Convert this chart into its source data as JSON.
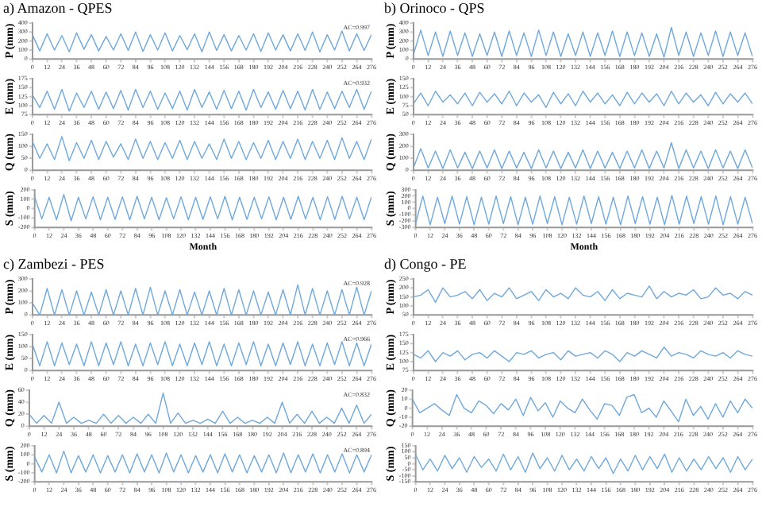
{
  "chart_data": [
    {
      "type": "line",
      "title": "a) Amazon - QPES",
      "ylabel": "P (mm)",
      "color": "#6fa8dc",
      "marker": "none",
      "x": [
        0,
        6,
        12,
        18,
        24,
        30,
        36,
        42,
        48,
        54,
        60,
        66,
        72,
        78,
        84,
        90,
        96,
        102,
        108,
        114,
        120,
        126,
        132,
        138,
        144,
        150,
        156,
        162,
        168,
        174,
        180,
        186,
        192,
        198,
        204,
        210,
        216,
        222,
        228,
        234,
        240,
        246,
        252,
        258,
        264,
        270,
        276
      ],
      "values": [
        270,
        90,
        280,
        100,
        260,
        80,
        290,
        110,
        270,
        90,
        250,
        100,
        280,
        95,
        300,
        85,
        270,
        100,
        290,
        90,
        260,
        105,
        280,
        80,
        300,
        95,
        270,
        90,
        260,
        100,
        280,
        85,
        290,
        100,
        270,
        90,
        280,
        95,
        300,
        80,
        270,
        100,
        310,
        90,
        280,
        95,
        270
      ],
      "xlim": [
        0,
        276
      ],
      "xticks": [
        0,
        12,
        24,
        36,
        48,
        60,
        72,
        84,
        96,
        108,
        120,
        132,
        144,
        156,
        168,
        180,
        192,
        204,
        216,
        228,
        240,
        252,
        264,
        276
      ],
      "ylim": [
        0,
        400
      ],
      "yticks": [
        0,
        100,
        200,
        300,
        400
      ],
      "annotations": [
        "AC=0.997"
      ]
    },
    {
      "type": "line",
      "ylabel": "E (mm)",
      "color": "#6fa8dc",
      "marker": "none",
      "x": [
        0,
        6,
        12,
        18,
        24,
        30,
        36,
        42,
        48,
        54,
        60,
        66,
        72,
        78,
        84,
        90,
        96,
        102,
        108,
        114,
        120,
        126,
        132,
        138,
        144,
        150,
        156,
        162,
        168,
        174,
        180,
        186,
        192,
        198,
        204,
        210,
        216,
        222,
        228,
        234,
        240,
        246,
        252,
        258,
        264,
        270,
        276
      ],
      "values": [
        130,
        95,
        140,
        90,
        145,
        85,
        135,
        95,
        140,
        90,
        138,
        92,
        142,
        88,
        145,
        95,
        140,
        90,
        135,
        92,
        140,
        88,
        145,
        95,
        138,
        90,
        142,
        92,
        140,
        88,
        145,
        95,
        138,
        90,
        142,
        92,
        140,
        88,
        145,
        90,
        138,
        92,
        140,
        95,
        145,
        90,
        140
      ],
      "xlim": [
        0,
        276
      ],
      "xticks": [
        0,
        12,
        24,
        36,
        48,
        60,
        72,
        84,
        96,
        108,
        120,
        132,
        144,
        156,
        168,
        180,
        192,
        204,
        216,
        228,
        240,
        252,
        264,
        276
      ],
      "ylim": [
        75,
        175
      ],
      "yticks": [
        75,
        100,
        125,
        150,
        175
      ],
      "annotations": [
        "AC=0.932"
      ]
    },
    {
      "type": "line",
      "ylabel": "Q (mm)",
      "color": "#6fa8dc",
      "marker": "none",
      "x": [
        0,
        6,
        12,
        18,
        24,
        30,
        36,
        42,
        48,
        54,
        60,
        66,
        72,
        78,
        84,
        90,
        96,
        102,
        108,
        114,
        120,
        126,
        132,
        138,
        144,
        150,
        156,
        162,
        168,
        174,
        180,
        186,
        192,
        198,
        204,
        210,
        216,
        222,
        228,
        234,
        240,
        246,
        252,
        258,
        264,
        270,
        276
      ],
      "values": [
        120,
        50,
        110,
        45,
        140,
        40,
        115,
        50,
        125,
        45,
        120,
        55,
        110,
        45,
        130,
        50,
        120,
        45,
        115,
        50,
        125,
        45,
        120,
        50,
        110,
        45,
        130,
        50,
        120,
        45,
        115,
        50,
        125,
        45,
        120,
        50,
        130,
        45,
        120,
        50,
        125,
        45,
        135,
        50,
        120,
        45,
        130
      ],
      "xlim": [
        0,
        276
      ],
      "xticks": [
        0,
        12,
        24,
        36,
        48,
        60,
        72,
        84,
        96,
        108,
        120,
        132,
        144,
        156,
        168,
        180,
        192,
        204,
        216,
        228,
        240,
        252,
        264,
        276
      ],
      "ylim": [
        0,
        150
      ],
      "yticks": [
        0,
        50,
        100,
        150
      ]
    },
    {
      "type": "line",
      "ylabel": "S (mm)",
      "xlabel": "Month",
      "color": "#6fa8dc",
      "marker": "none",
      "x": [
        0,
        6,
        12,
        18,
        24,
        30,
        36,
        42,
        48,
        54,
        60,
        66,
        72,
        78,
        84,
        90,
        96,
        102,
        108,
        114,
        120,
        126,
        132,
        138,
        144,
        150,
        156,
        162,
        168,
        174,
        180,
        186,
        192,
        198,
        204,
        210,
        216,
        222,
        228,
        234,
        240,
        246,
        252,
        258,
        264,
        270,
        276
      ],
      "values": [
        130,
        -110,
        120,
        -120,
        150,
        -130,
        120,
        -110,
        125,
        -120,
        120,
        -115,
        125,
        -120,
        130,
        -110,
        120,
        -120,
        115,
        -110,
        125,
        -120,
        120,
        -115,
        125,
        -110,
        130,
        -120,
        120,
        -115,
        120,
        -110,
        125,
        -120,
        120,
        -115,
        130,
        -110,
        120,
        -120,
        125,
        -115,
        130,
        -110,
        120,
        -120,
        125
      ],
      "xlim": [
        0,
        276
      ],
      "xticks": [
        0,
        12,
        24,
        36,
        48,
        60,
        72,
        84,
        96,
        108,
        120,
        132,
        144,
        156,
        168,
        180,
        192,
        204,
        216,
        228,
        240,
        252,
        264,
        276
      ],
      "ylim": [
        -200,
        200
      ],
      "yticks": [
        -200,
        -100,
        0,
        100,
        200
      ]
    },
    {
      "type": "line",
      "title": "b) Orinoco - QPS",
      "ylabel": "P (mm)",
      "color": "#6fa8dc",
      "marker": "none",
      "x": [
        0,
        6,
        12,
        18,
        24,
        30,
        36,
        42,
        48,
        54,
        60,
        66,
        72,
        78,
        84,
        90,
        96,
        102,
        108,
        114,
        120,
        126,
        132,
        138,
        144,
        150,
        156,
        162,
        168,
        174,
        180,
        186,
        192,
        198,
        204,
        210,
        216,
        222,
        228,
        234,
        240,
        246,
        252,
        258,
        264,
        270,
        276
      ],
      "values": [
        50,
        320,
        40,
        300,
        30,
        310,
        40,
        290,
        30,
        280,
        40,
        300,
        30,
        310,
        40,
        290,
        30,
        320,
        40,
        300,
        30,
        280,
        40,
        300,
        30,
        290,
        40,
        310,
        30,
        300,
        40,
        290,
        30,
        280,
        20,
        350,
        40,
        300,
        30,
        290,
        40,
        310,
        30,
        300,
        40,
        290,
        30
      ],
      "xlim": [
        0,
        276
      ],
      "xticks": [
        0,
        12,
        24,
        36,
        48,
        60,
        72,
        84,
        96,
        108,
        120,
        132,
        144,
        156,
        168,
        180,
        192,
        204,
        216,
        228,
        240,
        252,
        264,
        276
      ],
      "ylim": [
        0,
        400
      ],
      "yticks": [
        0,
        100,
        200,
        300,
        400
      ]
    },
    {
      "type": "line",
      "ylabel": "E (mm)",
      "color": "#6fa8dc",
      "marker": "none",
      "x": [
        0,
        6,
        12,
        18,
        24,
        30,
        36,
        42,
        48,
        54,
        60,
        66,
        72,
        78,
        84,
        90,
        96,
        102,
        108,
        114,
        120,
        126,
        132,
        138,
        144,
        150,
        156,
        162,
        168,
        174,
        180,
        186,
        192,
        198,
        204,
        210,
        216,
        222,
        228,
        234,
        240,
        246,
        252,
        258,
        264,
        270,
        276
      ],
      "values": [
        80,
        110,
        75,
        115,
        85,
        105,
        80,
        110,
        75,
        112,
        85,
        108,
        80,
        115,
        75,
        110,
        85,
        105,
        70,
        112,
        80,
        108,
        75,
        115,
        85,
        110,
        80,
        105,
        75,
        112,
        80,
        110,
        85,
        108,
        75,
        115,
        80,
        110,
        85,
        105,
        75,
        112,
        80,
        108,
        85,
        110,
        80
      ],
      "xlim": [
        0,
        276
      ],
      "xticks": [
        0,
        12,
        24,
        36,
        48,
        60,
        72,
        84,
        96,
        108,
        120,
        132,
        144,
        156,
        168,
        180,
        192,
        204,
        216,
        228,
        240,
        252,
        264,
        276
      ],
      "ylim": [
        50,
        150
      ],
      "yticks": [
        50,
        75,
        100,
        125,
        150
      ]
    },
    {
      "type": "line",
      "ylabel": "Q (mm)",
      "color": "#6fa8dc",
      "marker": "none",
      "x": [
        0,
        6,
        12,
        18,
        24,
        30,
        36,
        42,
        48,
        54,
        60,
        66,
        72,
        78,
        84,
        90,
        96,
        102,
        108,
        114,
        120,
        126,
        132,
        138,
        144,
        150,
        156,
        162,
        168,
        174,
        180,
        186,
        192,
        198,
        204,
        210,
        216,
        222,
        228,
        234,
        240,
        246,
        252,
        258,
        264,
        270,
        276
      ],
      "values": [
        20,
        180,
        20,
        160,
        15,
        170,
        20,
        150,
        15,
        160,
        20,
        170,
        15,
        160,
        20,
        150,
        15,
        170,
        20,
        160,
        15,
        150,
        20,
        170,
        15,
        160,
        20,
        150,
        15,
        160,
        20,
        170,
        15,
        160,
        20,
        230,
        15,
        170,
        20,
        160,
        15,
        170,
        20,
        160,
        15,
        170,
        20
      ],
      "xlim": [
        0,
        276
      ],
      "xticks": [
        0,
        12,
        24,
        36,
        48,
        60,
        72,
        84,
        96,
        108,
        120,
        132,
        144,
        156,
        168,
        180,
        192,
        204,
        216,
        228,
        240,
        252,
        264,
        276
      ],
      "ylim": [
        0,
        300
      ],
      "yticks": [
        0,
        100,
        200,
        300
      ]
    },
    {
      "type": "line",
      "ylabel": "S (mm)",
      "xlabel": "Month",
      "color": "#6fa8dc",
      "marker": "none",
      "x": [
        0,
        6,
        12,
        18,
        24,
        30,
        36,
        42,
        48,
        54,
        60,
        66,
        72,
        78,
        84,
        90,
        96,
        102,
        108,
        114,
        120,
        126,
        132,
        138,
        144,
        150,
        156,
        162,
        168,
        174,
        180,
        186,
        192,
        198,
        204,
        210,
        216,
        222,
        228,
        234,
        240,
        246,
        252,
        258,
        264,
        270,
        276
      ],
      "values": [
        -250,
        200,
        -260,
        180,
        -240,
        200,
        -250,
        190,
        -260,
        180,
        -250,
        200,
        -240,
        190,
        -260,
        180,
        -250,
        200,
        -240,
        190,
        -260,
        180,
        -250,
        200,
        -240,
        190,
        -250,
        180,
        -260,
        200,
        -240,
        190,
        -250,
        180,
        -260,
        210,
        -250,
        200,
        -240,
        190,
        -250,
        200,
        -260,
        190,
        -250,
        180,
        -240
      ],
      "xlim": [
        0,
        276
      ],
      "xticks": [
        0,
        12,
        24,
        36,
        48,
        60,
        72,
        84,
        96,
        108,
        120,
        132,
        144,
        156,
        168,
        180,
        192,
        204,
        216,
        228,
        240,
        252,
        264,
        276
      ],
      "ylim": [
        -300,
        300
      ],
      "yticks": [
        -300,
        -200,
        -100,
        0,
        100,
        200,
        300
      ]
    },
    {
      "type": "line",
      "title": "c) Zambezi - PES",
      "ylabel": "P (mm)",
      "color": "#6fa8dc",
      "marker": "none",
      "x": [
        0,
        6,
        12,
        18,
        24,
        30,
        36,
        42,
        48,
        54,
        60,
        66,
        72,
        78,
        84,
        90,
        96,
        102,
        108,
        114,
        120,
        126,
        132,
        138,
        144,
        150,
        156,
        162,
        168,
        174,
        180,
        186,
        192,
        198,
        204,
        210,
        216,
        222,
        228,
        234,
        240,
        246,
        252,
        258,
        264,
        270,
        276
      ],
      "values": [
        100,
        0,
        220,
        0,
        210,
        0,
        200,
        0,
        190,
        0,
        210,
        0,
        200,
        0,
        220,
        0,
        230,
        0,
        200,
        0,
        210,
        0,
        190,
        0,
        200,
        0,
        220,
        0,
        210,
        0,
        200,
        0,
        190,
        0,
        210,
        0,
        250,
        0,
        220,
        0,
        200,
        0,
        210,
        0,
        230,
        0,
        200
      ],
      "xlim": [
        0,
        276
      ],
      "xticks": [
        0,
        12,
        24,
        36,
        48,
        60,
        72,
        84,
        96,
        108,
        120,
        132,
        144,
        156,
        168,
        180,
        192,
        204,
        216,
        228,
        240,
        252,
        264,
        276
      ],
      "ylim": [
        0,
        300
      ],
      "yticks": [
        0,
        100,
        200,
        300
      ],
      "annotations": [
        "AC=0.928"
      ]
    },
    {
      "type": "line",
      "ylabel": "E (mm)",
      "color": "#6fa8dc",
      "marker": "none",
      "x": [
        0,
        6,
        12,
        18,
        24,
        30,
        36,
        42,
        48,
        54,
        60,
        66,
        72,
        78,
        84,
        90,
        96,
        102,
        108,
        114,
        120,
        126,
        132,
        138,
        144,
        150,
        156,
        162,
        168,
        174,
        180,
        186,
        192,
        198,
        204,
        210,
        216,
        222,
        228,
        234,
        240,
        246,
        252,
        258,
        264,
        270,
        276
      ],
      "values": [
        110,
        20,
        120,
        20,
        115,
        25,
        110,
        20,
        120,
        20,
        115,
        25,
        120,
        20,
        110,
        20,
        115,
        25,
        120,
        20,
        110,
        20,
        115,
        25,
        120,
        20,
        110,
        20,
        115,
        25,
        120,
        20,
        110,
        20,
        115,
        25,
        120,
        20,
        110,
        20,
        115,
        25,
        120,
        20,
        115,
        20,
        110
      ],
      "xlim": [
        0,
        276
      ],
      "xticks": [
        0,
        12,
        24,
        36,
        48,
        60,
        72,
        84,
        96,
        108,
        120,
        132,
        144,
        156,
        168,
        180,
        192,
        204,
        216,
        228,
        240,
        252,
        264,
        276
      ],
      "ylim": [
        0,
        150
      ],
      "yticks": [
        0,
        50,
        100,
        150
      ],
      "annotations": [
        "AC=0.966"
      ]
    },
    {
      "type": "line",
      "ylabel": "Q (mm)",
      "color": "#6fa8dc",
      "marker": "none",
      "x": [
        0,
        6,
        12,
        18,
        24,
        30,
        36,
        42,
        48,
        54,
        60,
        66,
        72,
        78,
        84,
        90,
        96,
        102,
        108,
        114,
        120,
        126,
        132,
        138,
        144,
        150,
        156,
        162,
        168,
        174,
        180,
        186,
        192,
        198,
        204,
        210,
        216,
        222,
        228,
        234,
        240,
        246,
        252,
        258,
        264,
        270,
        276
      ],
      "values": [
        20,
        5,
        18,
        5,
        40,
        5,
        15,
        5,
        10,
        5,
        20,
        5,
        18,
        5,
        15,
        5,
        20,
        5,
        55,
        5,
        22,
        5,
        10,
        5,
        12,
        5,
        25,
        5,
        15,
        5,
        10,
        5,
        15,
        5,
        40,
        5,
        20,
        5,
        25,
        5,
        15,
        5,
        30,
        5,
        35,
        5,
        20
      ],
      "xlim": [
        0,
        276
      ],
      "xticks": [
        0,
        12,
        24,
        36,
        48,
        60,
        72,
        84,
        96,
        108,
        120,
        132,
        144,
        156,
        168,
        180,
        192,
        204,
        216,
        228,
        240,
        252,
        264,
        276
      ],
      "ylim": [
        0,
        60
      ],
      "yticks": [
        0,
        20,
        40,
        60
      ],
      "annotations": [
        "AC=0.832"
      ]
    },
    {
      "type": "line",
      "ylabel": "S (mm)",
      "color": "#6fa8dc",
      "marker": "none",
      "x": [
        0,
        6,
        12,
        18,
        24,
        30,
        36,
        42,
        48,
        54,
        60,
        66,
        72,
        78,
        84,
        90,
        96,
        102,
        108,
        114,
        120,
        126,
        132,
        138,
        144,
        150,
        156,
        162,
        168,
        174,
        180,
        186,
        192,
        198,
        204,
        210,
        216,
        222,
        228,
        234,
        240,
        246,
        252,
        258,
        264,
        270,
        276
      ],
      "values": [
        80,
        -90,
        100,
        -100,
        140,
        -100,
        90,
        -90,
        100,
        -100,
        90,
        -90,
        100,
        -100,
        110,
        -90,
        100,
        -100,
        120,
        -90,
        100,
        -100,
        90,
        -90,
        100,
        -100,
        110,
        -90,
        100,
        -100,
        90,
        -90,
        100,
        -100,
        120,
        -100,
        100,
        -90,
        110,
        -100,
        100,
        -90,
        110,
        -100,
        100,
        -90,
        100
      ],
      "xlim": [
        0,
        276
      ],
      "xticks": [
        0,
        12,
        24,
        36,
        48,
        60,
        72,
        84,
        96,
        108,
        120,
        132,
        144,
        156,
        168,
        180,
        192,
        204,
        216,
        228,
        240,
        252,
        264,
        276
      ],
      "ylim": [
        -200,
        200
      ],
      "yticks": [
        -200,
        -100,
        0,
        100,
        200
      ],
      "annotations": [
        "AC=0.894"
      ]
    },
    {
      "type": "line",
      "title": "d) Congo - PE",
      "ylabel": "P (mm)",
      "color": "#6fa8dc",
      "marker": "none",
      "x": [
        0,
        6,
        12,
        18,
        24,
        30,
        36,
        42,
        48,
        54,
        60,
        66,
        72,
        78,
        84,
        90,
        96,
        102,
        108,
        114,
        120,
        126,
        132,
        138,
        144,
        150,
        156,
        162,
        168,
        174,
        180,
        186,
        192,
        198,
        204,
        210,
        216,
        222,
        228,
        234,
        240,
        246,
        252,
        258,
        264,
        270,
        276
      ],
      "values": [
        150,
        160,
        190,
        120,
        200,
        150,
        160,
        180,
        140,
        190,
        130,
        170,
        150,
        200,
        140,
        160,
        180,
        130,
        190,
        150,
        170,
        140,
        200,
        160,
        150,
        180,
        130,
        190,
        140,
        170,
        160,
        150,
        210,
        140,
        180,
        150,
        170,
        160,
        190,
        140,
        150,
        200,
        160,
        170,
        140,
        180,
        160
      ],
      "xlim": [
        0,
        276
      ],
      "xticks": [
        0,
        12,
        24,
        36,
        48,
        60,
        72,
        84,
        96,
        108,
        120,
        132,
        144,
        156,
        168,
        180,
        192,
        204,
        216,
        228,
        240,
        252,
        264,
        276
      ],
      "ylim": [
        50,
        250
      ],
      "yticks": [
        50,
        100,
        150,
        200,
        250
      ]
    },
    {
      "type": "line",
      "ylabel": "E (mm)",
      "color": "#6fa8dc",
      "marker": "none",
      "x": [
        0,
        6,
        12,
        18,
        24,
        30,
        36,
        42,
        48,
        54,
        60,
        66,
        72,
        78,
        84,
        90,
        96,
        102,
        108,
        114,
        120,
        126,
        132,
        138,
        144,
        150,
        156,
        162,
        168,
        174,
        180,
        186,
        192,
        198,
        204,
        210,
        216,
        222,
        228,
        234,
        240,
        246,
        252,
        258,
        264,
        270,
        276
      ],
      "values": [
        120,
        110,
        130,
        100,
        125,
        115,
        130,
        105,
        120,
        125,
        110,
        130,
        115,
        100,
        125,
        120,
        130,
        110,
        120,
        125,
        105,
        130,
        115,
        120,
        125,
        110,
        130,
        120,
        100,
        125,
        115,
        130,
        120,
        110,
        140,
        115,
        125,
        120,
        110,
        130,
        120,
        115,
        125,
        110,
        130,
        120,
        115
      ],
      "xlim": [
        0,
        276
      ],
      "xticks": [
        0,
        12,
        24,
        36,
        48,
        60,
        72,
        84,
        96,
        108,
        120,
        132,
        144,
        156,
        168,
        180,
        192,
        204,
        216,
        228,
        240,
        252,
        264,
        276
      ],
      "ylim": [
        75,
        175
      ],
      "yticks": [
        75,
        100,
        125,
        150,
        175
      ]
    },
    {
      "type": "line",
      "ylabel": "Q (mm)",
      "color": "#6fa8dc",
      "marker": "none",
      "x": [
        0,
        6,
        12,
        18,
        24,
        30,
        36,
        42,
        48,
        54,
        60,
        66,
        72,
        78,
        84,
        90,
        96,
        102,
        108,
        114,
        120,
        126,
        132,
        138,
        144,
        150,
        156,
        162,
        168,
        174,
        180,
        186,
        192,
        198,
        204,
        210,
        216,
        222,
        228,
        234,
        240,
        246,
        252,
        258,
        264,
        270,
        276
      ],
      "values": [
        10,
        -5,
        0,
        5,
        -2,
        -8,
        15,
        0,
        -5,
        8,
        3,
        -6,
        5,
        -2,
        10,
        -8,
        12,
        -3,
        6,
        -10,
        8,
        0,
        -5,
        10,
        -2,
        -12,
        5,
        3,
        -8,
        12,
        15,
        -5,
        0,
        -10,
        8,
        -3,
        -15,
        10,
        -8,
        2,
        -12,
        5,
        -10,
        8,
        -5,
        10,
        0
      ],
      "xlim": [
        0,
        276
      ],
      "xticks": [
        0,
        12,
        24,
        36,
        48,
        60,
        72,
        84,
        96,
        108,
        120,
        132,
        144,
        156,
        168,
        180,
        192,
        204,
        216,
        228,
        240,
        252,
        264,
        276
      ],
      "ylim": [
        -20,
        20
      ],
      "yticks": [
        -20,
        -10,
        0,
        10,
        20
      ]
    },
    {
      "type": "line",
      "ylabel": "S (mm)",
      "color": "#6fa8dc",
      "marker": "none",
      "x": [
        0,
        6,
        12,
        18,
        24,
        30,
        36,
        42,
        48,
        54,
        60,
        66,
        72,
        78,
        84,
        90,
        96,
        102,
        108,
        114,
        120,
        126,
        132,
        138,
        144,
        150,
        156,
        162,
        168,
        174,
        180,
        186,
        192,
        198,
        204,
        210,
        216,
        222,
        228,
        234,
        240,
        246,
        252,
        258,
        264,
        270,
        276
      ],
      "values": [
        80,
        -50,
        40,
        -60,
        70,
        -40,
        50,
        -70,
        60,
        -30,
        40,
        -60,
        80,
        -50,
        60,
        -70,
        90,
        -40,
        50,
        -60,
        70,
        -50,
        40,
        -60,
        60,
        -40,
        50,
        -80,
        40,
        -60,
        70,
        -50,
        60,
        -40,
        80,
        -70,
        50,
        -60,
        40,
        -50,
        60,
        -40,
        50,
        -70,
        60,
        -50,
        40
      ],
      "xlim": [
        0,
        276
      ],
      "xticks": [
        0,
        12,
        24,
        36,
        48,
        60,
        72,
        84,
        96,
        108,
        120,
        132,
        144,
        156,
        168,
        180,
        192,
        204,
        216,
        228,
        240,
        252,
        264,
        276
      ],
      "ylim": [
        -150,
        150
      ],
      "yticks": [
        -150,
        -100,
        -50,
        0,
        50,
        100,
        150
      ]
    }
  ]
}
